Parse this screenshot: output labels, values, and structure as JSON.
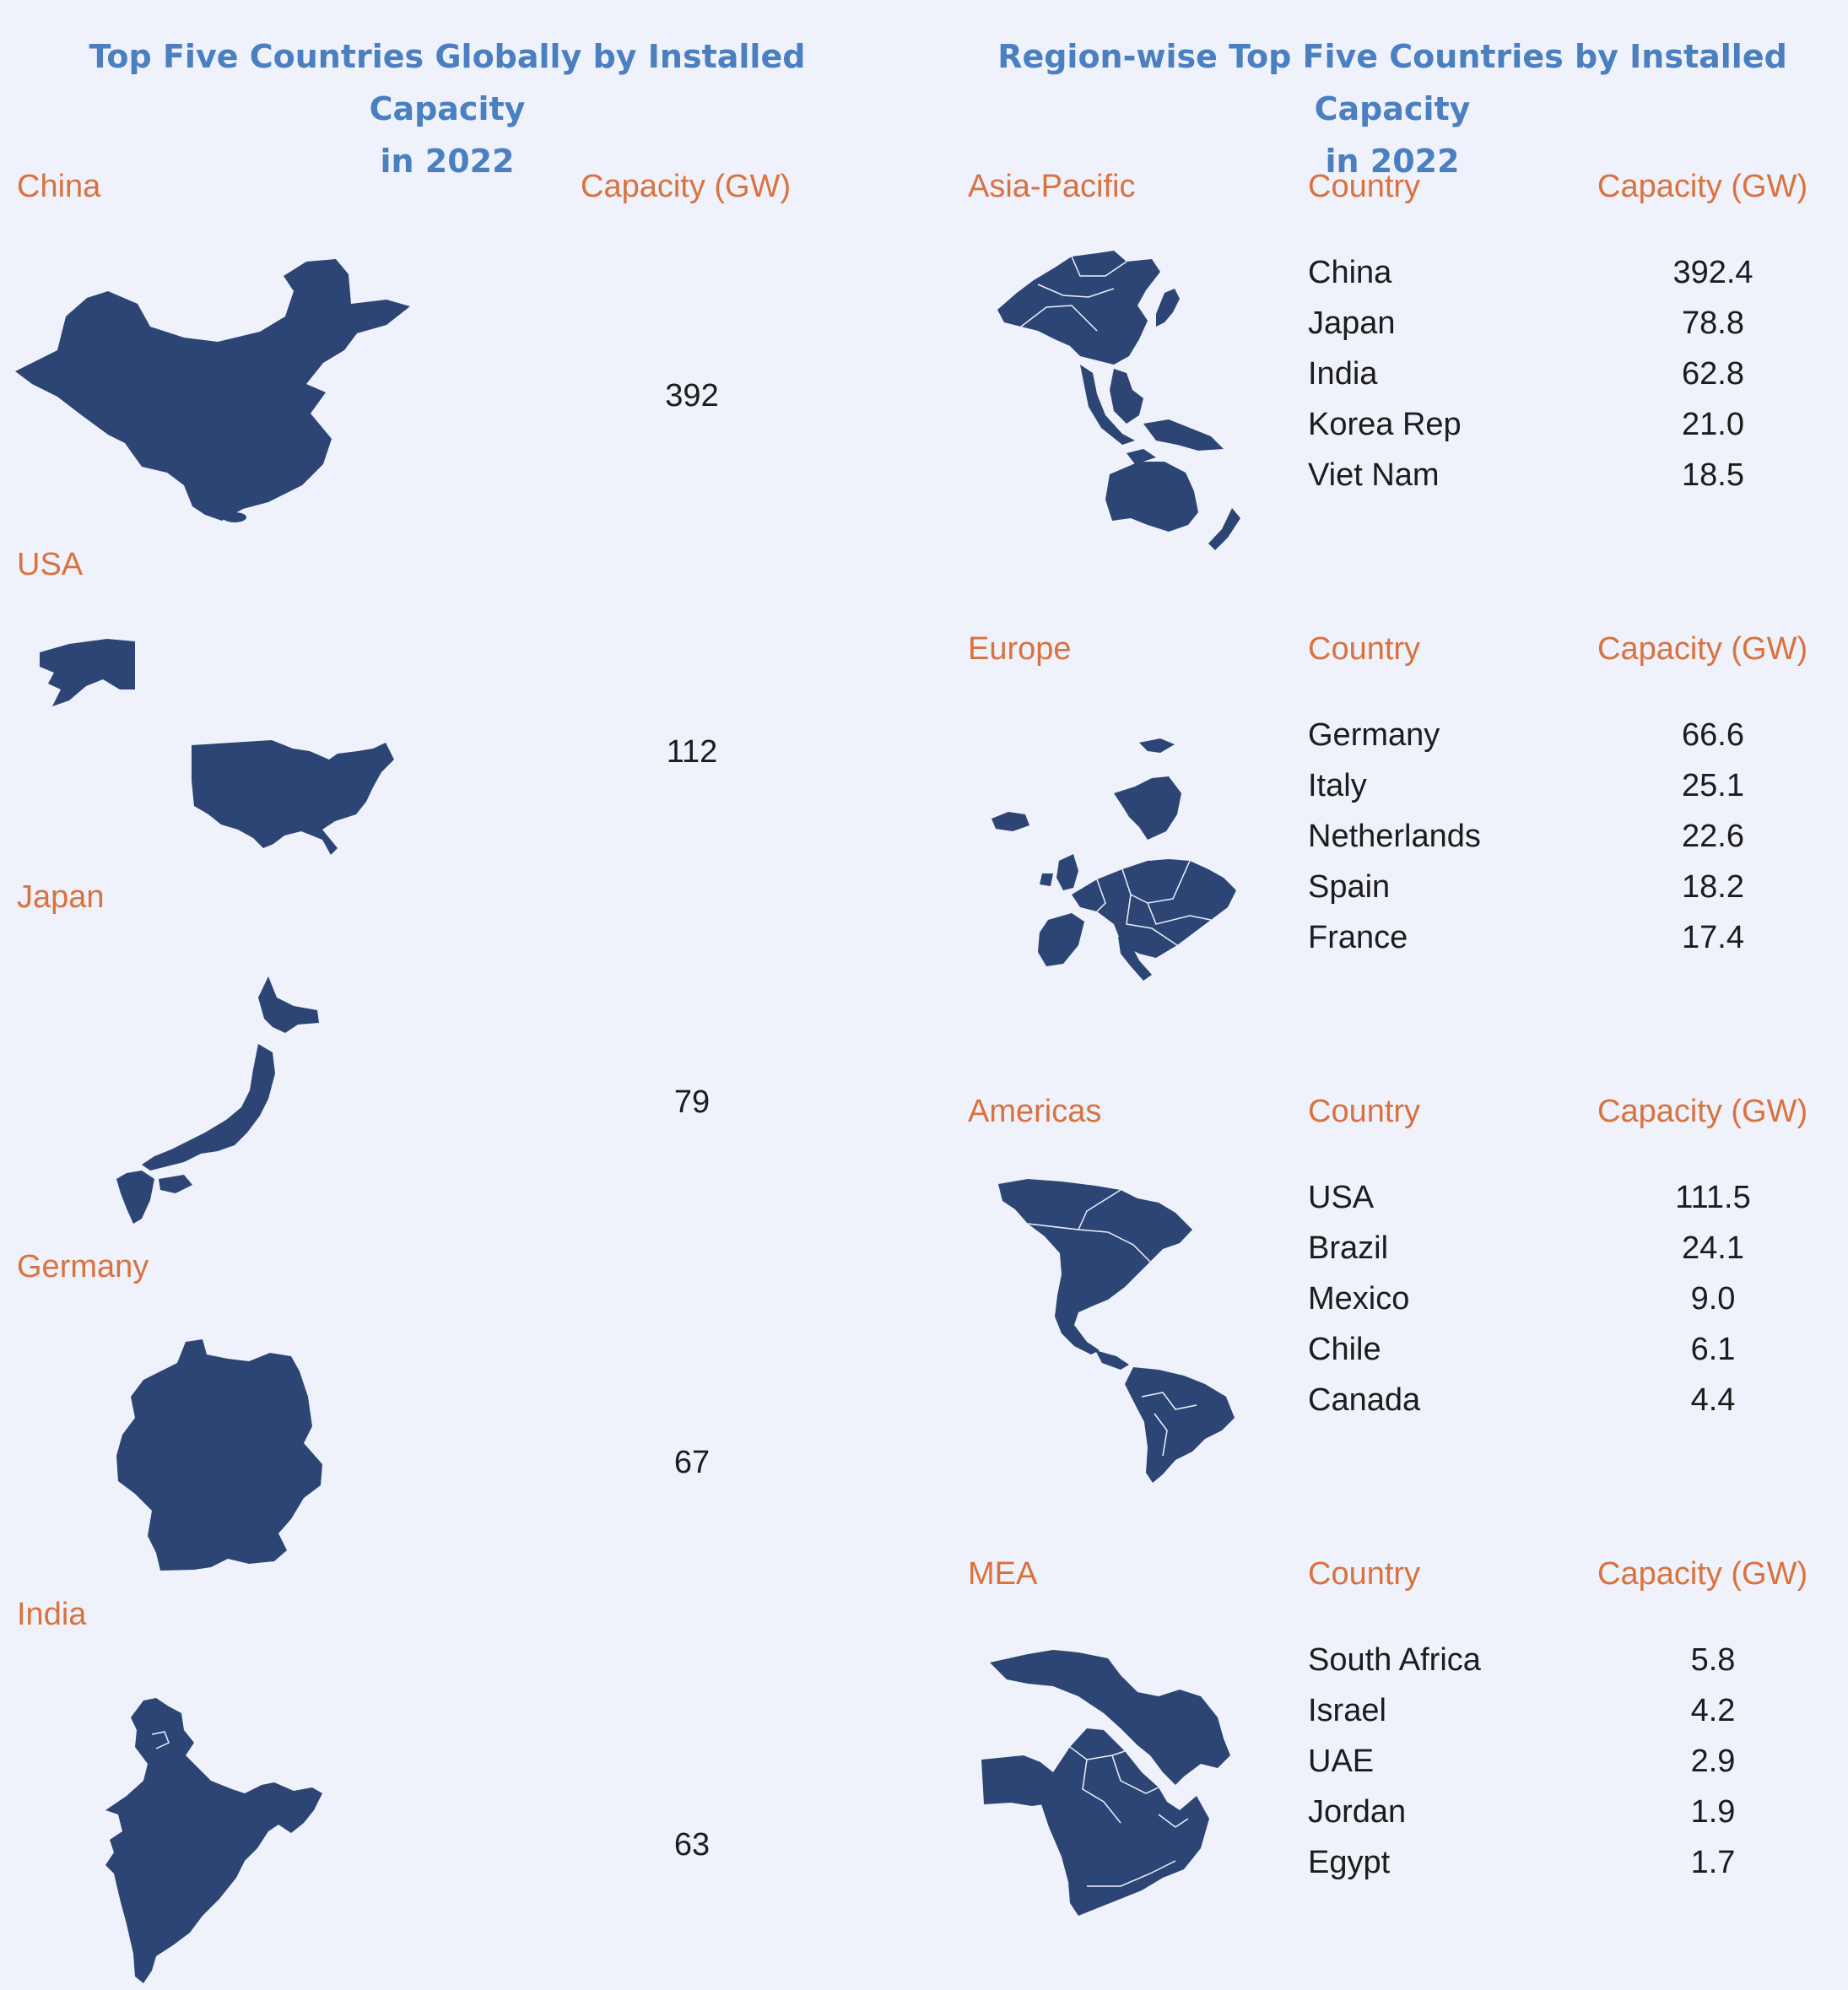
{
  "left": {
    "title_line1": "Top Five Countries Globally by Installed Capacity",
    "title_line2": "in 2022",
    "capacity_header": "Capacity (GW)",
    "countries": [
      {
        "name": "China",
        "capacity": "392",
        "map_icon": "china-map-icon"
      },
      {
        "name": "USA",
        "capacity": "112",
        "map_icon": "usa-map-icon"
      },
      {
        "name": "Japan",
        "capacity": "79",
        "map_icon": "japan-map-icon"
      },
      {
        "name": "Germany",
        "capacity": "67",
        "map_icon": "germany-map-icon"
      },
      {
        "name": "India",
        "capacity": "63",
        "map_icon": "india-map-icon"
      }
    ]
  },
  "right": {
    "title_line1": "Region-wise Top Five Countries by Installed Capacity",
    "title_line2": "in 2022",
    "country_header": "Country",
    "capacity_header": "Capacity (GW)",
    "regions": [
      {
        "name": "Asia-Pacific",
        "map_icon": "asia-pacific-map-icon",
        "rows": [
          [
            "China",
            "392.4"
          ],
          [
            "Japan",
            "78.8"
          ],
          [
            "India",
            "62.8"
          ],
          [
            "Korea Rep",
            "21.0"
          ],
          [
            "Viet Nam",
            "18.5"
          ]
        ]
      },
      {
        "name": "Europe",
        "map_icon": "europe-map-icon",
        "rows": [
          [
            "Germany",
            "66.6"
          ],
          [
            "Italy",
            "25.1"
          ],
          [
            "Netherlands",
            "22.6"
          ],
          [
            "Spain",
            "18.2"
          ],
          [
            "France",
            "17.4"
          ]
        ]
      },
      {
        "name": "Americas",
        "map_icon": "americas-map-icon",
        "rows": [
          [
            "USA",
            "111.5"
          ],
          [
            "Brazil",
            "24.1"
          ],
          [
            "Mexico",
            "9.0"
          ],
          [
            "Chile",
            "6.1"
          ],
          [
            "Canada",
            "4.4"
          ]
        ]
      },
      {
        "name": "MEA",
        "map_icon": "mea-map-icon",
        "rows": [
          [
            "South Africa",
            "5.8"
          ],
          [
            "Israel",
            "4.2"
          ],
          [
            "UAE",
            "2.9"
          ],
          [
            "Jordan",
            "1.9"
          ],
          [
            "Egypt",
            "1.7"
          ]
        ]
      }
    ]
  },
  "colors": {
    "background": "#eff1fb",
    "title": "#4a7fc0",
    "label": "#d9723f",
    "map": "#2c4574",
    "text": "#1c1c1c"
  }
}
